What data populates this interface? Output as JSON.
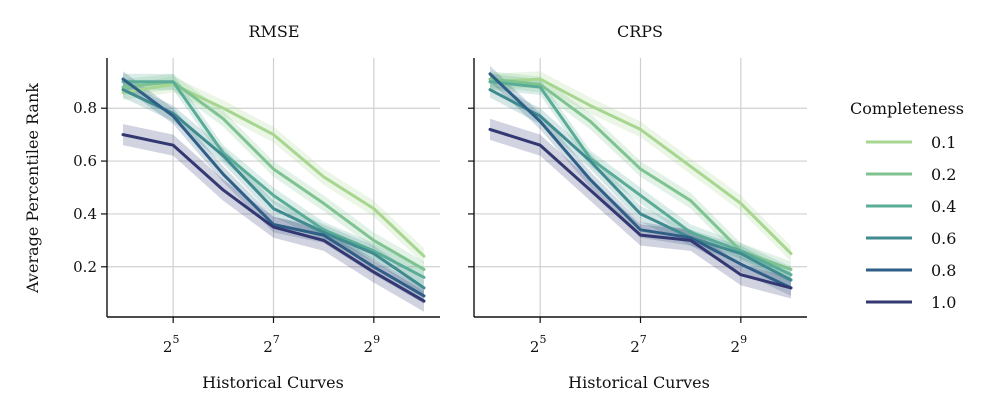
{
  "chart_data": {
    "type": "line",
    "ylabel": "Average Percentilee Rank",
    "xlabel": "Historical Curves",
    "x_scale": "log2",
    "x": [
      16,
      32,
      64,
      128,
      256,
      512,
      1024
    ],
    "xlim": [
      16,
      1024
    ],
    "ylim": [
      0.01,
      0.99
    ],
    "yticks": [
      0.2,
      0.4,
      0.6,
      0.8
    ],
    "ytick_labels": [
      "0.2",
      "0.4",
      "0.6",
      "0.8"
    ],
    "xticks": [
      {
        "value": 32,
        "base": "2",
        "exp": "5"
      },
      {
        "value": 128,
        "base": "2",
        "exp": "7"
      },
      {
        "value": 512,
        "base": "2",
        "exp": "9"
      }
    ],
    "grid": true,
    "legend": {
      "title": "Completeness",
      "placement": "right",
      "entries": [
        {
          "label": "0.1",
          "color": "#a6d68f"
        },
        {
          "label": "0.2",
          "color": "#7fc390"
        },
        {
          "label": "0.4",
          "color": "#5aac97"
        },
        {
          "label": "0.6",
          "color": "#3f8b8f"
        },
        {
          "label": "0.8",
          "color": "#2f5f86"
        },
        {
          "label": "1.0",
          "color": "#333872"
        }
      ]
    },
    "panels": [
      {
        "title": "RMSE",
        "series": [
          {
            "name": "0.1",
            "values": [
              0.86,
              0.89,
              0.8,
              0.7,
              0.54,
              0.42,
              0.24
            ],
            "band": 0.03
          },
          {
            "name": "0.2",
            "values": [
              0.88,
              0.9,
              0.76,
              0.57,
              0.44,
              0.3,
              0.19
            ],
            "band": 0.03
          },
          {
            "name": "0.4",
            "values": [
              0.9,
              0.9,
              0.63,
              0.47,
              0.34,
              0.26,
              0.16
            ],
            "band": 0.03
          },
          {
            "name": "0.6",
            "values": [
              0.87,
              0.78,
              0.62,
              0.42,
              0.33,
              0.25,
              0.12
            ],
            "band": 0.03
          },
          {
            "name": "0.8",
            "values": [
              0.91,
              0.77,
              0.55,
              0.36,
              0.32,
              0.2,
              0.09
            ],
            "band": 0.03
          },
          {
            "name": "1.0",
            "values": [
              0.7,
              0.66,
              0.49,
              0.35,
              0.3,
              0.18,
              0.07
            ],
            "band": 0.04
          }
        ]
      },
      {
        "title": "CRPS",
        "series": [
          {
            "name": "0.1",
            "values": [
              0.9,
              0.91,
              0.81,
              0.72,
              0.58,
              0.44,
              0.25
            ],
            "band": 0.03
          },
          {
            "name": "0.2",
            "values": [
              0.91,
              0.89,
              0.75,
              0.57,
              0.45,
              0.26,
              0.19
            ],
            "band": 0.03
          },
          {
            "name": "0.4",
            "values": [
              0.9,
              0.88,
              0.61,
              0.47,
              0.33,
              0.26,
              0.17
            ],
            "band": 0.03
          },
          {
            "name": "0.6",
            "values": [
              0.87,
              0.77,
              0.6,
              0.4,
              0.31,
              0.25,
              0.15
            ],
            "band": 0.03
          },
          {
            "name": "0.8",
            "values": [
              0.93,
              0.75,
              0.53,
              0.34,
              0.31,
              0.21,
              0.12
            ],
            "band": 0.03
          },
          {
            "name": "1.0",
            "values": [
              0.72,
              0.66,
              0.49,
              0.32,
              0.3,
              0.17,
              0.12
            ],
            "band": 0.04
          }
        ]
      }
    ]
  }
}
